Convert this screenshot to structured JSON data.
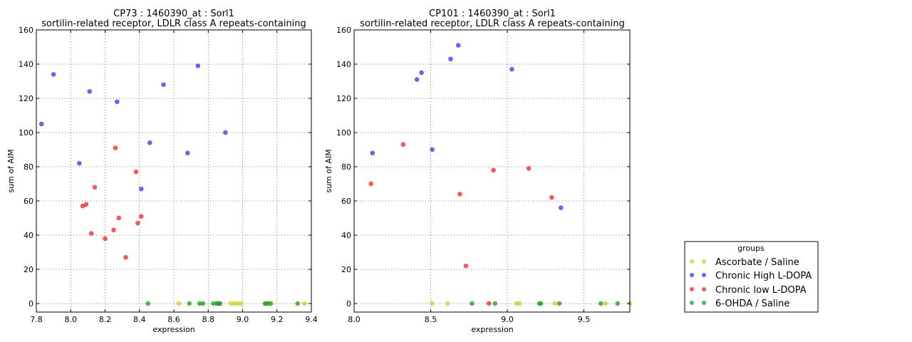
{
  "colors": {
    "ascorbate_saline": "#cccc33",
    "chronic_high": "#3333ee",
    "chronic_low": "#ee2222",
    "ohda_saline": "#229922"
  },
  "legend": {
    "title": "groups",
    "entries": [
      {
        "label": "Ascorbate / Saline",
        "color": "#cccc33"
      },
      {
        "label": "Chronic High L-DOPA",
        "color": "#3333ee"
      },
      {
        "label": "Chronic low L-DOPA",
        "color": "#ee2222"
      },
      {
        "label": "6-OHDA / Saline",
        "color": "#229922"
      }
    ]
  },
  "chart_data": [
    {
      "type": "scatter",
      "title": "CP73 : 1460390_at : Sorl1",
      "subtitle": "sortilin-related receptor, LDLR class A repeats-containing",
      "xlabel": "expression",
      "ylabel": "sum of AIM",
      "xlim": [
        7.8,
        9.4
      ],
      "ylim": [
        -5,
        160
      ],
      "xticks": [
        "7.8",
        "8.0",
        "8.2",
        "8.4",
        "8.6",
        "8.8",
        "9.0",
        "9.2",
        "9.4"
      ],
      "xtick_values": [
        7.8,
        8.0,
        8.2,
        8.4,
        8.6,
        8.8,
        9.0,
        9.2,
        9.4
      ],
      "yticks": [
        "0",
        "20",
        "40",
        "60",
        "80",
        "100",
        "120",
        "140",
        "160"
      ],
      "ytick_values": [
        0,
        20,
        40,
        60,
        80,
        100,
        120,
        140,
        160
      ],
      "grid": true,
      "series": [
        {
          "name": "Ascorbate / Saline",
          "color": "#cccc33",
          "x": [
            8.63,
            8.93,
            8.95,
            8.97,
            8.99,
            9.15,
            9.17,
            9.36
          ],
          "y": [
            0,
            0,
            0,
            0,
            0,
            0,
            0,
            0
          ]
        },
        {
          "name": "Chronic High L-DOPA",
          "color": "#3333ee",
          "x": [
            7.83,
            7.9,
            8.05,
            8.11,
            8.27,
            8.41,
            8.46,
            8.54,
            8.68,
            8.74,
            8.9
          ],
          "y": [
            105,
            134,
            82,
            124,
            118,
            67,
            94,
            128,
            88,
            139,
            100
          ]
        },
        {
          "name": "Chronic low L-DOPA",
          "color": "#ee2222",
          "x": [
            8.07,
            8.09,
            8.12,
            8.14,
            8.2,
            8.25,
            8.26,
            8.28,
            8.32,
            8.38,
            8.39,
            8.41
          ],
          "y": [
            57,
            58,
            41,
            68,
            38,
            43,
            91,
            50,
            27,
            77,
            47,
            51
          ]
        },
        {
          "name": "6-OHDA / Saline",
          "color": "#229922",
          "x": [
            8.45,
            8.69,
            8.75,
            8.77,
            8.83,
            8.85,
            8.86,
            8.87,
            9.13,
            9.14,
            9.16,
            9.32
          ],
          "y": [
            0,
            0,
            0,
            0,
            0,
            0,
            0,
            0,
            0,
            0,
            0,
            0
          ]
        }
      ]
    },
    {
      "type": "scatter",
      "title": "CP101 : 1460390_at : Sorl1",
      "subtitle": "sortilin-related receptor, LDLR class A repeats-containing",
      "xlabel": "expression",
      "ylabel": "sum of AIM",
      "xlim": [
        8.0,
        9.8
      ],
      "ylim": [
        -5,
        160
      ],
      "xticks": [
        "8.0",
        "8.5",
        "9.0",
        "9.5"
      ],
      "xtick_values": [
        8.0,
        8.5,
        9.0,
        9.5
      ],
      "yticks": [
        "0",
        "20",
        "40",
        "60",
        "80",
        "100",
        "120",
        "140",
        "160"
      ],
      "ytick_values": [
        0,
        20,
        40,
        60,
        80,
        100,
        120,
        140,
        160
      ],
      "grid": true,
      "series": [
        {
          "name": "Ascorbate / Saline",
          "color": "#cccc33",
          "x": [
            8.51,
            8.61,
            9.06,
            9.08,
            9.31,
            9.64,
            9.8
          ],
          "y": [
            0,
            0,
            0,
            0,
            0,
            0,
            0
          ]
        },
        {
          "name": "Chronic High L-DOPA",
          "color": "#3333ee",
          "x": [
            8.12,
            8.41,
            8.44,
            8.51,
            8.63,
            8.68,
            9.03,
            9.35
          ],
          "y": [
            88,
            131,
            135,
            90,
            143,
            151,
            137,
            56
          ]
        },
        {
          "name": "Chronic low L-DOPA",
          "color": "#ee2222",
          "x": [
            8.11,
            8.32,
            8.69,
            8.73,
            8.91,
            9.14,
            9.29,
            8.88
          ],
          "y": [
            70,
            93,
            64,
            22,
            78,
            79,
            62,
            0
          ]
        },
        {
          "name": "6-OHDA / Saline",
          "color": "#229922",
          "x": [
            8.77,
            8.92,
            9.21,
            9.22,
            9.34,
            9.61,
            9.72
          ],
          "y": [
            0,
            0,
            0,
            0,
            0,
            0,
            0
          ]
        }
      ]
    }
  ]
}
